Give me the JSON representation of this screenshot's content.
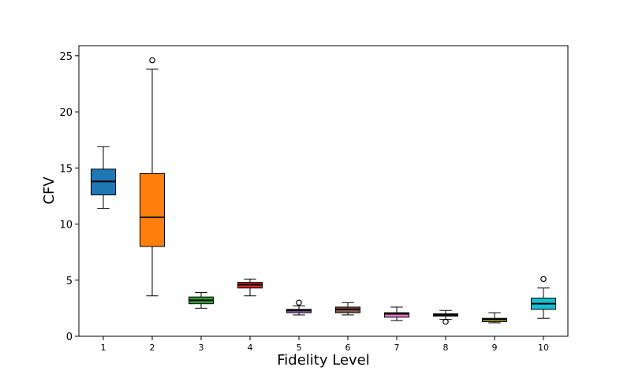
{
  "chart_data": {
    "type": "box",
    "title": "",
    "xlabel": "Fidelity Level",
    "ylabel": "CFV",
    "ylim": [
      0,
      25.9
    ],
    "yticks": [
      0,
      5,
      10,
      15,
      20,
      25
    ],
    "categories": [
      "1",
      "2",
      "3",
      "4",
      "5",
      "6",
      "7",
      "8",
      "9",
      "10"
    ],
    "grid": false,
    "boxes": [
      {
        "label": "1",
        "color": "#1f77b4",
        "whisker_low": 11.4,
        "q1": 12.6,
        "median": 13.8,
        "q3": 14.9,
        "whisker_high": 16.9,
        "outliers": []
      },
      {
        "label": "2",
        "color": "#ff7f0e",
        "whisker_low": 3.6,
        "q1": 8.0,
        "median": 10.6,
        "q3": 14.5,
        "whisker_high": 23.8,
        "outliers": [
          24.6
        ]
      },
      {
        "label": "3",
        "color": "#2ca02c",
        "whisker_low": 2.5,
        "q1": 2.9,
        "median": 3.2,
        "q3": 3.5,
        "whisker_high": 3.9,
        "outliers": []
      },
      {
        "label": "4",
        "color": "#d62728",
        "whisker_low": 3.6,
        "q1": 4.3,
        "median": 4.6,
        "q3": 4.8,
        "whisker_high": 5.1,
        "outliers": []
      },
      {
        "label": "5",
        "color": "#9467bd",
        "whisker_low": 1.9,
        "q1": 2.1,
        "median": 2.3,
        "q3": 2.4,
        "whisker_high": 2.7,
        "outliers": [
          3.0
        ]
      },
      {
        "label": "6",
        "color": "#8c564b",
        "whisker_low": 1.9,
        "q1": 2.1,
        "median": 2.4,
        "q3": 2.6,
        "whisker_high": 3.0,
        "outliers": []
      },
      {
        "label": "7",
        "color": "#e377c2",
        "whisker_low": 1.4,
        "q1": 1.7,
        "median": 2.0,
        "q3": 2.1,
        "whisker_high": 2.6,
        "outliers": []
      },
      {
        "label": "8",
        "color": "#7f7f7f",
        "whisker_low": 1.5,
        "q1": 1.8,
        "median": 1.9,
        "q3": 2.0,
        "whisker_high": 2.3,
        "outliers": [
          1.3
        ]
      },
      {
        "label": "9",
        "color": "#bcbd22",
        "whisker_low": 1.2,
        "q1": 1.3,
        "median": 1.5,
        "q3": 1.6,
        "whisker_high": 2.1,
        "outliers": []
      },
      {
        "label": "10",
        "color": "#17becf",
        "whisker_low": 1.6,
        "q1": 2.4,
        "median": 2.9,
        "q3": 3.4,
        "whisker_high": 4.3,
        "outliers": [
          5.1
        ]
      }
    ]
  }
}
